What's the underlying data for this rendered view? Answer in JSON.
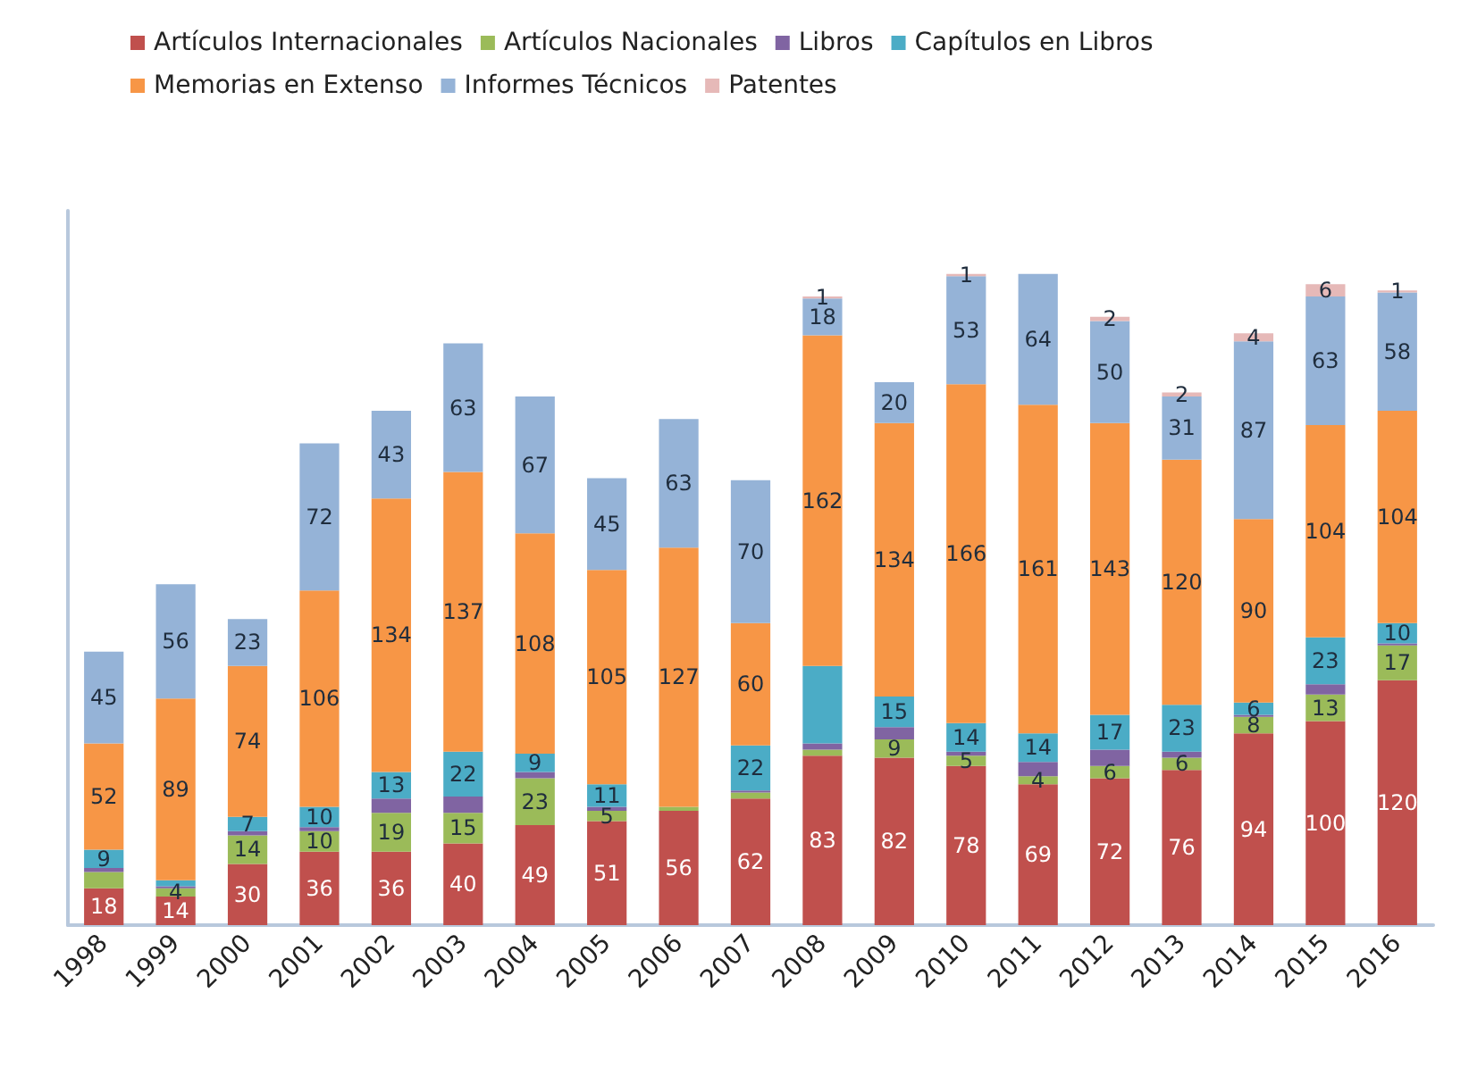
{
  "chart_data": {
    "type": "bar",
    "stacked": true,
    "legend": "top left",
    "grid": false,
    "categories": [
      "1998",
      "1999",
      "2000",
      "2001",
      "2002",
      "2003",
      "2004",
      "2005",
      "2006",
      "2007",
      "2008",
      "2009",
      "2010",
      "2011",
      "2012",
      "2013",
      "2014",
      "2015",
      "2016"
    ],
    "series": [
      {
        "name": "Artículos Internacionales",
        "color": "#c0504d",
        "values": [
          18,
          14,
          30,
          36,
          36,
          40,
          49,
          51,
          56,
          62,
          83,
          82,
          78,
          69,
          72,
          76,
          94,
          100,
          120
        ],
        "value_labels": [
          "18",
          "14",
          "30",
          "36",
          "36",
          "40",
          "49",
          "51",
          "56",
          "62",
          "83",
          "82",
          "78",
          "69",
          "72",
          "76",
          "94",
          "100",
          "120"
        ]
      },
      {
        "name": "Artículos Nacionales",
        "color": "#9bbb59",
        "values": [
          8,
          4,
          14,
          10,
          19,
          15,
          23,
          5,
          2,
          3,
          3,
          9,
          5,
          4,
          6,
          6,
          8,
          13,
          17
        ],
        "value_labels": [
          null,
          "4",
          "14",
          "10",
          "19",
          "15",
          "23",
          "5",
          null,
          null,
          null,
          "9",
          "5",
          "4",
          "6",
          "6",
          "8",
          "13",
          "17"
        ]
      },
      {
        "name": "Libros",
        "color": "#8064a2",
        "values": [
          2,
          1,
          2,
          2,
          7,
          8,
          3,
          2,
          null,
          1,
          3,
          6,
          2,
          7,
          8,
          3,
          1,
          5,
          1
        ],
        "value_labels": [
          null,
          null,
          null,
          null,
          null,
          null,
          null,
          null,
          null,
          null,
          null,
          null,
          null,
          null,
          null,
          null,
          null,
          null,
          null
        ]
      },
      {
        "name": "Capítulos en Libros",
        "color": "#4bacc6",
        "values": [
          9,
          3,
          7,
          10,
          13,
          22,
          9,
          11,
          null,
          22,
          38,
          15,
          14,
          14,
          17,
          23,
          6,
          23,
          10
        ],
        "value_labels": [
          "9",
          null,
          "7",
          "10",
          "13",
          "22",
          "9",
          "11",
          null,
          "22",
          null,
          "15",
          "14",
          "14",
          "17",
          "23",
          "6",
          "23",
          "10"
        ]
      },
      {
        "name": "Memorias en Extenso",
        "color": "#f79646",
        "values": [
          52,
          89,
          74,
          106,
          134,
          137,
          108,
          105,
          127,
          60,
          162,
          134,
          166,
          161,
          143,
          120,
          90,
          104,
          104
        ],
        "value_labels": [
          "52",
          "89",
          "74",
          "106",
          "134",
          "137",
          "108",
          "105",
          "127",
          "60",
          "162",
          "134",
          "166",
          "161",
          "143",
          "120",
          "90",
          "104",
          "104"
        ]
      },
      {
        "name": "Informes Técnicos",
        "color": "#95b3d7",
        "values": [
          45,
          56,
          23,
          72,
          43,
          63,
          67,
          45,
          63,
          70,
          18,
          20,
          53,
          64,
          50,
          31,
          87,
          63,
          58
        ],
        "value_labels": [
          "45",
          "56",
          "23",
          "72",
          "43",
          "63",
          "67",
          "45",
          "63",
          "70",
          "18",
          "20",
          "53",
          "64",
          "50",
          "31",
          "87",
          "63",
          "58"
        ]
      },
      {
        "name": "Patentes",
        "color": "#e6b9b8",
        "values": [
          null,
          null,
          null,
          null,
          null,
          null,
          null,
          null,
          null,
          null,
          1,
          null,
          1,
          null,
          2,
          2,
          4,
          6,
          1
        ],
        "value_labels": [
          null,
          null,
          null,
          null,
          null,
          null,
          null,
          null,
          null,
          null,
          "1",
          null,
          "1",
          null,
          "2",
          "2",
          "4",
          "6",
          "1"
        ]
      }
    ]
  }
}
